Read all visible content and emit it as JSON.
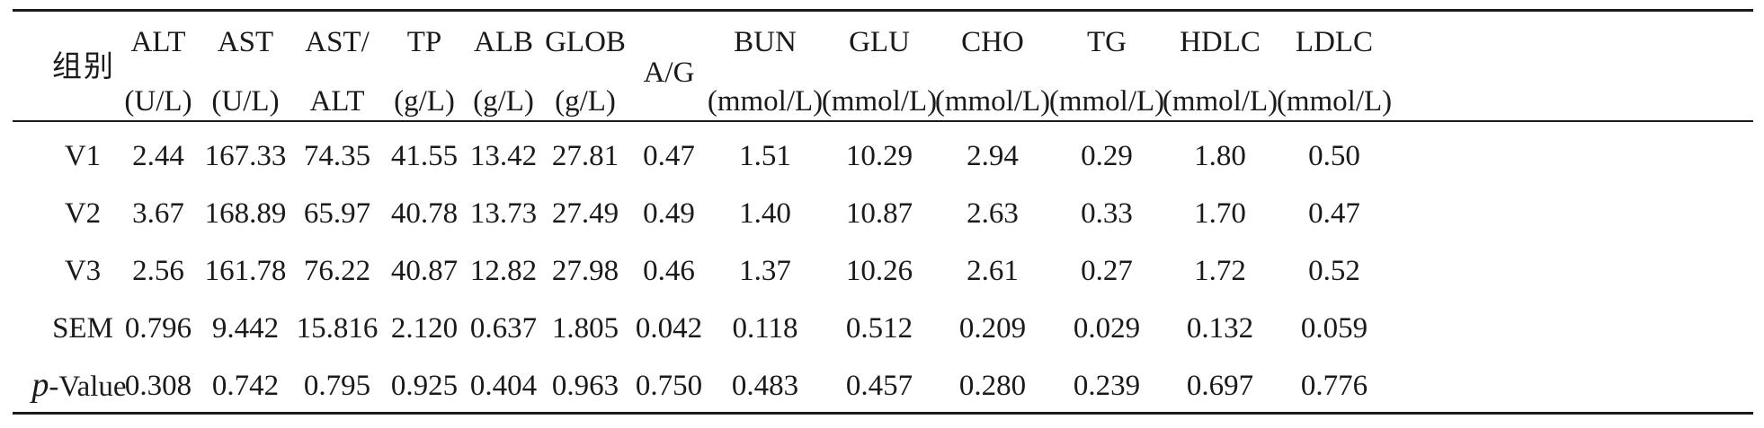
{
  "table": {
    "stub_header": "组别",
    "columns": [
      {
        "key": "alt",
        "name": "ALT",
        "unit": "(U/L)"
      },
      {
        "key": "ast",
        "name": "AST",
        "unit": "(U/L)"
      },
      {
        "key": "astalt",
        "name": "AST/",
        "unit": "ALT"
      },
      {
        "key": "tp",
        "name": "TP",
        "unit": "(g/L)"
      },
      {
        "key": "alb",
        "name": "ALB",
        "unit": "(g/L)"
      },
      {
        "key": "glob",
        "name": "GLOB",
        "unit": "(g/L)"
      },
      {
        "key": "ag",
        "name": "A/G",
        "unit": ""
      },
      {
        "key": "bun",
        "name": "BUN",
        "unit": "(mmol/L)"
      },
      {
        "key": "glu",
        "name": "GLU",
        "unit": "(mmol/L)"
      },
      {
        "key": "cho",
        "name": "CHO",
        "unit": "(mmol/L)"
      },
      {
        "key": "tg",
        "name": "TG",
        "unit": "(mmol/L)"
      },
      {
        "key": "hdlc",
        "name": "HDLC",
        "unit": "(mmol/L)"
      },
      {
        "key": "ldlc",
        "name": "LDLC",
        "unit": "(mmol/L)"
      }
    ],
    "rows": [
      {
        "label": "V1",
        "values": [
          "2.44",
          "167.33",
          "74.35",
          "41.55",
          "13.42",
          "27.81",
          "0.47",
          "1.51",
          "10.29",
          "2.94",
          "0.29",
          "1.80",
          "0.50"
        ]
      },
      {
        "label": "V2",
        "values": [
          "3.67",
          "168.89",
          "65.97",
          "40.78",
          "13.73",
          "27.49",
          "0.49",
          "1.40",
          "10.87",
          "2.63",
          "0.33",
          "1.70",
          "0.47"
        ]
      },
      {
        "label": "V3",
        "values": [
          "2.56",
          "161.78",
          "76.22",
          "40.87",
          "12.82",
          "27.98",
          "0.46",
          "1.37",
          "10.26",
          "2.61",
          "0.27",
          "1.72",
          "0.52"
        ]
      },
      {
        "label": "SEM",
        "values": [
          "0.796",
          "9.442",
          "15.816",
          "2.120",
          "0.637",
          "1.805",
          "0.042",
          "0.118",
          "0.512",
          "0.209",
          "0.029",
          "0.132",
          "0.059"
        ]
      }
    ],
    "pvalue_row": {
      "label_italic": "p",
      "label_rest": "-Value",
      "values": [
        "0.308",
        "0.742",
        "0.795",
        "0.925",
        "0.404",
        "0.963",
        "0.750",
        "0.483",
        "0.457",
        "0.280",
        "0.239",
        "0.697",
        "0.776"
      ]
    }
  }
}
